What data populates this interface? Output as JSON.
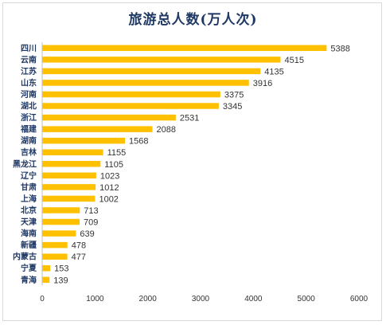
{
  "chart_data": {
    "type": "bar",
    "orientation": "horizontal",
    "title": "旅游总人数(万人次)",
    "xlabel": "",
    "ylabel": "",
    "categories": [
      "四川",
      "云南",
      "江苏",
      "山东",
      "河南",
      "湖北",
      "浙江",
      "福建",
      "湖南",
      "吉林",
      "黑龙江",
      "辽宁",
      "甘肃",
      "上海",
      "北京",
      "天津",
      "海南",
      "新疆",
      "内蒙古",
      "宁夏",
      "青海"
    ],
    "values": [
      5388,
      4515,
      4135,
      3916,
      3375,
      3345,
      2531,
      2088,
      1568,
      1155,
      1105,
      1023,
      1012,
      1002,
      713,
      709,
      639,
      478,
      477,
      153,
      139
    ],
    "xlim": [
      0,
      6000
    ],
    "xticks": [
      0,
      1000,
      2000,
      3000,
      4000,
      5000,
      6000
    ],
    "grid": false,
    "legend": "none",
    "bar_color": "#ffc000",
    "title_color": "#1f3864"
  }
}
